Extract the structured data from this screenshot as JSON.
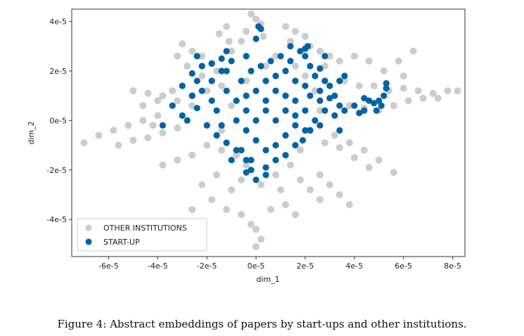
{
  "chart_data": {
    "type": "scatter",
    "xlabel": "dim_1",
    "ylabel": "dim_2",
    "xlim": [
      -7.5e-05,
      8.5e-05
    ],
    "ylim": [
      -5.5e-05,
      4.5e-05
    ],
    "xticks": [
      -6e-05,
      -4e-05,
      -2e-05,
      0,
      2e-05,
      4e-05,
      6e-05,
      8e-05
    ],
    "xtick_labels": [
      "-6e-5",
      "-4e-5",
      "-2e-5",
      "0e-5",
      "2e-5",
      "4e-5",
      "6e-5",
      "8e-5"
    ],
    "yticks": [
      -4e-05,
      -2e-05,
      0,
      2e-05,
      4e-05
    ],
    "ytick_labels": [
      "-4e-5",
      "-2e-5",
      "0e-5",
      "2e-5",
      "4e-5"
    ],
    "legend_position": "lower-left",
    "series": [
      {
        "name": "OTHER INSTITUTIONS",
        "color": "#cccccc",
        "points": [
          [
            -7e-05,
            -9e-06
          ],
          [
            -6.4e-05,
            -6e-06
          ],
          [
            -5.8e-05,
            -4e-06
          ],
          [
            -5.2e-05,
            -2e-06
          ],
          [
            -4.6e-05,
            0.0
          ],
          [
            -4e-05,
            2e-06
          ],
          [
            -5.6e-05,
            -1e-05
          ],
          [
            -5e-05,
            -8e-06
          ],
          [
            -4.4e-05,
            -7e-06
          ],
          [
            -3.8e-05,
            -5e-06
          ],
          [
            -3.2e-05,
            -3e-06
          ],
          [
            -5e-05,
            1.2e-05
          ],
          [
            -4.4e-05,
            1.1e-05
          ],
          [
            -3.8e-05,
            1e-05
          ],
          [
            -3.2e-05,
            8e-06
          ],
          [
            -2.6e-05,
            6e-06
          ],
          [
            -4.6e-05,
            6e-06
          ],
          [
            -4e-05,
            8e-06
          ],
          [
            -3.4e-05,
            1.2e-05
          ],
          [
            -4.2e-05,
            -2e-06
          ],
          [
            -3e-05,
            3.1e-05
          ],
          [
            -2.6e-05,
            2.8e-05
          ],
          [
            -2.2e-05,
            2.6e-05
          ],
          [
            -1.8e-05,
            2.3e-05
          ],
          [
            -2.8e-05,
            2.2e-05
          ],
          [
            -3.2e-05,
            2.6e-05
          ],
          [
            -1.5e-05,
            3.5e-05
          ],
          [
            -1.1e-05,
            3.2e-05
          ],
          [
            -1e-05,
            2.8e-05
          ],
          [
            -1.2e-05,
            3.8e-05
          ],
          [
            -2e-06,
            4.3e-05
          ],
          [
            0.0,
            4.1e-05
          ],
          [
            2e-06,
            3.9e-05
          ],
          [
            -4e-06,
            3.6e-05
          ],
          [
            3e-06,
            3.4e-05
          ],
          [
            -6e-06,
            3.2e-05
          ],
          [
            1.2e-05,
            3.8e-05
          ],
          [
            1.6e-05,
            3.6e-05
          ],
          [
            2e-05,
            3.4e-05
          ],
          [
            1.4e-05,
            3.2e-05
          ],
          [
            2.2e-05,
            3e-05
          ],
          [
            2.6e-05,
            2.8e-05
          ],
          [
            3e-05,
            2.6e-05
          ],
          [
            3.4e-05,
            2.4e-05
          ],
          [
            2.8e-05,
            2.2e-05
          ],
          [
            4e-05,
            2.6e-05
          ],
          [
            4.6e-05,
            2.4e-05
          ],
          [
            5.2e-05,
            2e-05
          ],
          [
            5.8e-05,
            2.4e-05
          ],
          [
            6.4e-05,
            2.8e-05
          ],
          [
            6e-05,
            1.8e-05
          ],
          [
            3.6e-05,
            1.6e-05
          ],
          [
            4.2e-05,
            1.4e-05
          ],
          [
            4.8e-05,
            1.4e-05
          ],
          [
            5.4e-05,
            1.2e-05
          ],
          [
            6e-05,
            1.3e-05
          ],
          [
            6.6e-05,
            1.2e-05
          ],
          [
            7.2e-05,
            1.1e-05
          ],
          [
            7.8e-05,
            1.2e-05
          ],
          [
            8.2e-05,
            1.2e-05
          ],
          [
            7.4e-05,
            9e-06
          ],
          [
            6.8e-05,
            9e-06
          ],
          [
            6.2e-05,
            8e-06
          ],
          [
            5.6e-05,
            6e-06
          ],
          [
            5e-05,
            4e-06
          ],
          [
            4.4e-05,
            5e-06
          ],
          [
            3.8e-05,
            6e-06
          ],
          [
            3.2e-05,
            -6e-06
          ],
          [
            3.8e-05,
            -9e-06
          ],
          [
            4.4e-05,
            -1.2e-05
          ],
          [
            5e-05,
            -1.6e-05
          ],
          [
            5.6e-05,
            -2.1e-05
          ],
          [
            4.6e-05,
            -1.9e-05
          ],
          [
            4e-05,
            -1.5e-05
          ],
          [
            3.4e-05,
            -1.1e-05
          ],
          [
            2.8e-05,
            -9e-06
          ],
          [
            2.6e-05,
            -2.2e-05
          ],
          [
            3e-05,
            -2.6e-05
          ],
          [
            3.4e-05,
            -3e-05
          ],
          [
            3.8e-05,
            -3.4e-05
          ],
          [
            2.6e-05,
            -3.2e-05
          ],
          [
            2.2e-05,
            -2.8e-05
          ],
          [
            1.6e-05,
            -3.8e-05
          ],
          [
            1.2e-05,
            -3.4e-05
          ],
          [
            6e-06,
            -3.6e-05
          ],
          [
            -6e-06,
            -3.8e-05
          ],
          [
            0.0,
            -4.4e-05
          ],
          [
            2e-06,
            -4.8e-05
          ],
          [
            0.0,
            -5.1e-05
          ],
          [
            -2e-06,
            -4.2e-05
          ],
          [
            -1.2e-05,
            -3.6e-05
          ],
          [
            -1.8e-05,
            -3.2e-05
          ],
          [
            -2.6e-05,
            -3.6e-05
          ],
          [
            -3.2e-05,
            -4.2e-05
          ],
          [
            -2.2e-05,
            -2.6e-05
          ],
          [
            -1.6e-05,
            -2.2e-05
          ],
          [
            -1e-05,
            -2.8e-05
          ],
          [
            -6e-06,
            -2.4e-05
          ],
          [
            -3.8e-05,
            -1.8e-05
          ],
          [
            -3.2e-05,
            -1.6e-05
          ],
          [
            -2.6e-05,
            -1.4e-05
          ],
          [
            -2e-05,
            -1e-05
          ],
          [
            -1.4e-05,
            -1.2e-05
          ],
          [
            -2.6e-05,
            1e-05
          ],
          [
            -2e-05,
            1.2e-05
          ],
          [
            -1.4e-05,
            1.4e-05
          ],
          [
            -2.2e-05,
            1.8e-05
          ],
          [
            -1.6e-05,
            2e-05
          ],
          [
            -1.4e-05,
            -4e-06
          ],
          [
            -1e-05,
            6e-06
          ],
          [
            -8e-06,
            -1.4e-05
          ],
          [
            -4e-06,
            1.6e-05
          ],
          [
            4e-06,
            2.2e-05
          ],
          [
            8e-06,
            2.6e-05
          ],
          [
            1.6e-05,
            2.2e-05
          ],
          [
            2e-05,
            1.8e-05
          ],
          [
            2.4e-05,
            1.2e-05
          ],
          [
            2.6e-05,
            4e-06
          ],
          [
            2.2e-05,
            -4e-06
          ],
          [
            1.8e-05,
            -1.2e-05
          ],
          [
            1.4e-05,
            -1.8e-05
          ],
          [
            8e-06,
            -2.2e-05
          ],
          [
            2e-06,
            -2.6e-05
          ],
          [
            -4e-06,
            -1.8e-05
          ],
          [
            1e-05,
            -2.8e-05
          ],
          [
            1.8e-05,
            -2.4e-05
          ]
        ]
      },
      {
        "name": "START-UP",
        "color": "#0063a3",
        "points": [
          [
            -3.8e-05,
            -2e-06
          ],
          [
            -3e-05,
            2e-06
          ],
          [
            -3.4e-05,
            6e-06
          ],
          [
            -2.8e-05,
            0.0
          ],
          [
            -2.6e-05,
            1e-05
          ],
          [
            -3e-05,
            1.4e-05
          ],
          [
            -2.4e-05,
            1.6e-05
          ],
          [
            -2.6e-05,
            1.9e-05
          ],
          [
            -2.2e-05,
            2.2e-05
          ],
          [
            -2.4e-05,
            2.6e-05
          ],
          [
            -1.8e-05,
            2.3e-05
          ],
          [
            -1.4e-05,
            2.5e-05
          ],
          [
            -1e-05,
            2.4e-05
          ],
          [
            -1.2e-05,
            2e-05
          ],
          [
            -1.8e-05,
            1.6e-05
          ],
          [
            -1.2e-05,
            1.2e-05
          ],
          [
            -8e-06,
            8e-06
          ],
          [
            -1.6e-05,
            4e-06
          ],
          [
            -2e-05,
            -2e-06
          ],
          [
            -1.6e-05,
            -6e-06
          ],
          [
            -1.2e-05,
            -9e-06
          ],
          [
            -8e-06,
            -1.2e-05
          ],
          [
            -4e-06,
            -1.6e-05
          ],
          [
            -2e-06,
            -2e-05
          ],
          [
            0.0,
            -2.4e-05
          ],
          [
            4e-06,
            -1.9e-05
          ],
          [
            8e-06,
            -1.6e-05
          ],
          [
            1.2e-05,
            -1.4e-05
          ],
          [
            1.6e-05,
            -1e-05
          ],
          [
            1.9e-05,
            -8e-06
          ],
          [
            2e-05,
            -4e-06
          ],
          [
            1.6e-05,
            -2e-06
          ],
          [
            1.2e-05,
            -6e-06
          ],
          [
            8e-06,
            -1e-05
          ],
          [
            4e-06,
            -1.2e-05
          ],
          [
            0.0,
            -8e-06
          ],
          [
            -4e-06,
            -4e-06
          ],
          [
            -8e-06,
            0.0
          ],
          [
            -4e-06,
            4e-06
          ],
          [
            0.0,
            0.0
          ],
          [
            4e-06,
            4e-06
          ],
          [
            8e-06,
            0.0
          ],
          [
            1.2e-05,
            4e-06
          ],
          [
            1.6e-05,
            8e-06
          ],
          [
            2e-05,
            4e-06
          ],
          [
            4e-06,
            8e-06
          ],
          [
            0.0,
            1.2e-05
          ],
          [
            -4e-06,
            1e-05
          ],
          [
            8e-06,
            1.2e-05
          ],
          [
            1.2e-05,
            1e-05
          ],
          [
            4e-06,
            1.6e-05
          ],
          [
            8e-06,
            1.8e-05
          ],
          [
            1.2e-05,
            2e-05
          ],
          [
            1.6e-05,
            1.6e-05
          ],
          [
            2e-05,
            1.4e-05
          ],
          [
            -6e-06,
            1.6e-05
          ],
          [
            -2e-06,
            2e-05
          ],
          [
            2e-06,
            2.2e-05
          ],
          [
            6e-06,
            2.4e-05
          ],
          [
            1.4e-05,
            2.4e-05
          ],
          [
            -4e-06,
            2.6e-05
          ],
          [
            -1.2e-05,
            2.8e-05
          ],
          [
            0.0,
            3.3e-05
          ],
          [
            1e-06,
            3.8e-05
          ],
          [
            2e-06,
            3.7e-05
          ],
          [
            1e-05,
            2.6e-05
          ],
          [
            1.4e-05,
            3e-05
          ],
          [
            2e-05,
            2.6e-05
          ],
          [
            2.2e-05,
            2.2e-05
          ],
          [
            2.6e-05,
            2.1e-05
          ],
          [
            2.8e-05,
            2.6e-05
          ],
          [
            2e-05,
            2.9e-05
          ],
          [
            2.1e-05,
            3e-05
          ],
          [
            1.8e-05,
            2.8e-05
          ],
          [
            -1.4e-05,
            2e-05
          ],
          [
            2.4e-05,
            1.8e-05
          ],
          [
            2.8e-05,
            1.6e-05
          ],
          [
            3e-05,
            1.4e-05
          ],
          [
            2.6e-05,
            1.2e-05
          ],
          [
            2.2e-05,
            1e-05
          ],
          [
            2.6e-05,
            8e-06
          ],
          [
            3e-05,
            9e-06
          ],
          [
            2.8e-05,
            4e-06
          ],
          [
            2.4e-05,
            0.0
          ],
          [
            2.2e-05,
            -4e-06
          ],
          [
            3.2e-05,
            1e-05
          ],
          [
            3.4e-05,
            6e-06
          ],
          [
            3.2e-05,
            2e-06
          ],
          [
            2.6e-05,
            -2e-06
          ],
          [
            3.4e-05,
            1.6e-05
          ],
          [
            3.6e-05,
            4e-06
          ],
          [
            3.4e-05,
            -4e-06
          ],
          [
            4e-05,
            6e-06
          ],
          [
            4.2e-05,
            3e-06
          ],
          [
            4.4e-05,
            9e-06
          ],
          [
            4.6e-05,
            8e-06
          ],
          [
            4.8e-05,
            7e-06
          ],
          [
            5e-05,
            8e-06
          ],
          [
            5.2e-05,
            1e-05
          ],
          [
            5.3e-05,
            1.3e-05
          ],
          [
            5.3e-05,
            1.5e-05
          ],
          [
            4.9e-05,
            4e-06
          ],
          [
            5.1e-05,
            6e-06
          ],
          [
            4.4e-05,
            4e-06
          ],
          [
            3.6e-05,
            1.8e-05
          ],
          [
            -1e-05,
            -1.6e-05
          ],
          [
            -6e-06,
            -1.2e-05
          ],
          [
            -2e-06,
            -1.6e-05
          ],
          [
            4e-06,
            -2.2e-05
          ],
          [
            -4e-06,
            -2.1e-05
          ],
          [
            -1.8e-05,
            8e-06
          ],
          [
            -2.2e-05,
            1.2e-05
          ],
          [
            -1.4e-05,
            -2e-06
          ],
          [
            -2.4e-05,
            5e-06
          ],
          [
            1.6e-05,
            2e-06
          ]
        ]
      }
    ]
  },
  "caption": "Figure 4: Abstract embeddings of papers by start-ups and other institutions."
}
